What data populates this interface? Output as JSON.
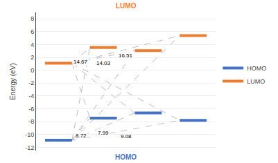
{
  "chart_data": {
    "type": "energy_levels",
    "categories": [
      null,
      null,
      null,
      null
    ],
    "series": [
      {
        "name": "HOMO",
        "color": "#4472C4",
        "values": [
          -10.9,
          -7.45,
          -6.65,
          -7.8
        ]
      },
      {
        "name": "LUMO",
        "color": "#ED7D31",
        "values": [
          1.1,
          3.55,
          3.05,
          5.4
        ]
      }
    ],
    "gaps": [
      8.72,
      14.67,
      7.99,
      14.03,
      9.08,
      16.51
    ],
    "annotations": [
      "HOMO",
      "LUMO"
    ],
    "ylabel": "Energy (eV)",
    "ylim": [
      -12.5,
      9
    ],
    "yticks": [
      -12,
      -10,
      -8,
      -6,
      -4,
      -2,
      0,
      2,
      4,
      6,
      8
    ],
    "grid": true,
    "legend": "right",
    "tick_labels": "y"
  }
}
